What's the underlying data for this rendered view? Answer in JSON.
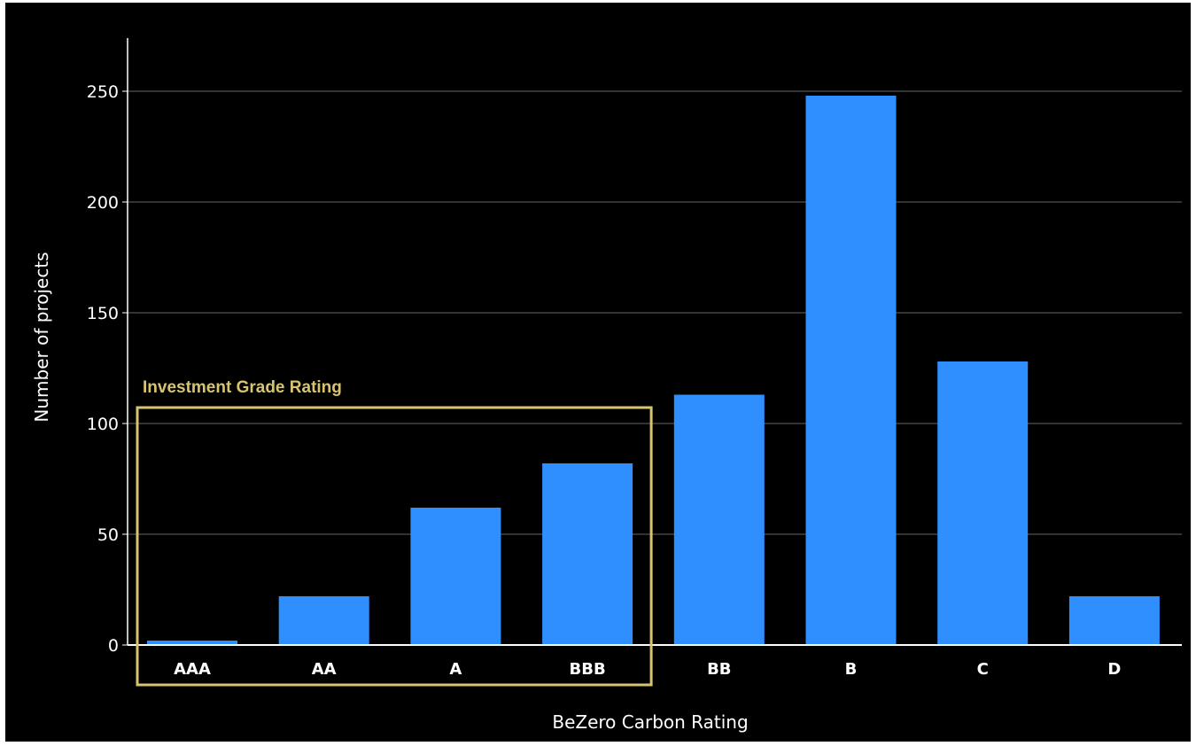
{
  "chart_data": {
    "type": "bar",
    "title": "",
    "xlabel": "BeZero Carbon Rating",
    "ylabel": "Number of projects",
    "categories": [
      "AAA",
      "AA",
      "A",
      "BBB",
      "BB",
      "B",
      "C",
      "D"
    ],
    "values": [
      2,
      22,
      62,
      82,
      113,
      248,
      128,
      22
    ],
    "ylim": [
      0,
      270
    ],
    "yticks": [
      0,
      50,
      100,
      150,
      200,
      250
    ],
    "grid": true,
    "legend": "none",
    "bar_color": "#2f8fff",
    "annotation": {
      "label": "Investment Grade Rating",
      "categories": [
        "AAA",
        "AA",
        "A",
        "BBB"
      ],
      "color": "#d8c46f"
    }
  },
  "colors": {
    "background": "#000000",
    "text": "#ffffff",
    "grid": "#666666",
    "axis": "#ffffff"
  }
}
